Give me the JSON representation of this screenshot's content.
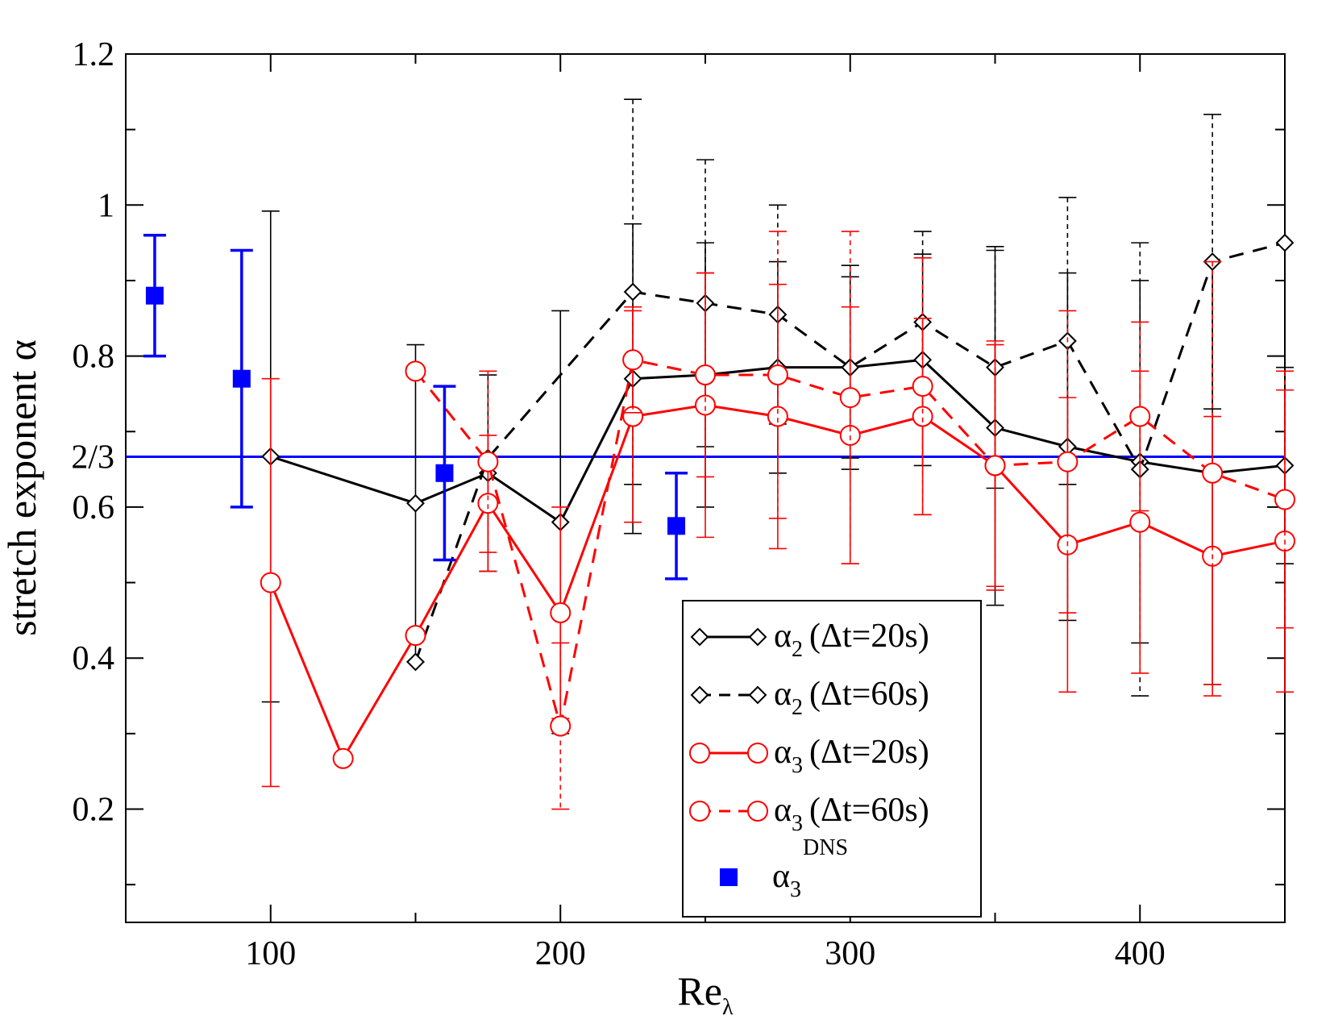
{
  "chart_data": {
    "type": "line",
    "title": "",
    "xlabel": "Re",
    "xlabel_sub": "λ",
    "ylabel": "stretch exponent α",
    "xlim": [
      50,
      450
    ],
    "ylim": [
      0.05,
      1.2
    ],
    "x_ticks": [
      100,
      200,
      300,
      400
    ],
    "x_tick_labels": [
      "100",
      "200",
      "300",
      "400"
    ],
    "y_ticks": [
      0.2,
      0.4,
      0.6,
      0.8,
      1.0,
      1.2
    ],
    "y_tick_labels": [
      "0.2",
      "0.4",
      "0.6",
      "0.8",
      "1",
      "1.2"
    ],
    "reference_line": {
      "value": 0.6667,
      "label": "2/3",
      "color": "#0000ff"
    },
    "legend_position": "bottom-center",
    "series": [
      {
        "name": "α2 (Δt=20s)",
        "symbol": "α",
        "subscript": "2",
        "detail": "(Δt=20s)",
        "color": "#000000",
        "dash": "solid",
        "marker": "diamond",
        "x": [
          100,
          150,
          175,
          200,
          225,
          250,
          275,
          300,
          325,
          350,
          375,
          400,
          425,
          450
        ],
        "y": [
          0.667,
          0.605,
          0.645,
          0.58,
          0.77,
          0.775,
          0.785,
          0.785,
          0.795,
          0.705,
          0.68,
          0.66,
          0.645,
          0.655
        ],
        "err": [
          0.325,
          0.21,
          0.13,
          0.28,
          0.205,
          0.175,
          0.14,
          0.135,
          0.14,
          0.235,
          0.23,
          0.24,
          0.28,
          0.13
        ]
      },
      {
        "name": "α2 (Δt=60s)",
        "symbol": "α",
        "subscript": "2",
        "detail": "(Δt=60s)",
        "color": "#000000",
        "dash": "dashed",
        "marker": "diamond",
        "x": [
          150,
          175,
          225,
          250,
          275,
          300,
          325,
          350,
          375,
          400,
          425,
          450
        ],
        "y": [
          0.395,
          0.665,
          0.885,
          0.87,
          0.855,
          0.785,
          0.845,
          0.785,
          0.82,
          0.65,
          0.925,
          0.95
        ],
        "err": [
          0.0,
          0.0,
          0.255,
          0.19,
          0.145,
          0.12,
          0.12,
          0.16,
          0.19,
          0.3,
          0.195,
          0.0
        ]
      },
      {
        "name": "α3 (Δt=20s)",
        "symbol": "α",
        "subscript": "3",
        "detail": "(Δt=20s)",
        "color": "#ff0000",
        "dash": "solid",
        "marker": "circle",
        "x": [
          100,
          125,
          150,
          175,
          200,
          225,
          250,
          275,
          300,
          325,
          350,
          375,
          400,
          425,
          450
        ],
        "y": [
          0.5,
          0.267,
          0.43,
          0.605,
          0.46,
          0.72,
          0.735,
          0.72,
          0.695,
          0.72,
          0.655,
          0.55,
          0.58,
          0.535,
          0.555
        ],
        "err": [
          0.27,
          0.0,
          0.0,
          0.09,
          0.14,
          0.14,
          0.175,
          0.175,
          0.17,
          0.13,
          0.16,
          0.195,
          0.2,
          0.185,
          0.2
        ]
      },
      {
        "name": "α3 (Δt=60s)",
        "symbol": "α",
        "subscript": "3",
        "detail": "(Δt=60s)",
        "color": "#ff0000",
        "dash": "dashed",
        "marker": "circle",
        "x": [
          150,
          175,
          200,
          225,
          250,
          275,
          300,
          325,
          350,
          375,
          400,
          425,
          450
        ],
        "y": [
          0.78,
          0.66,
          0.31,
          0.795,
          0.775,
          0.775,
          0.745,
          0.76,
          0.655,
          0.66,
          0.72,
          0.645,
          0.61
        ],
        "err": [
          0.0,
          0.12,
          0.11,
          0.07,
          0.135,
          0.19,
          0.22,
          0.17,
          0.165,
          0.2,
          0.125,
          0.28,
          0.17
        ]
      }
    ],
    "dns_series": {
      "name": "α3 DNS",
      "symbol": "α",
      "subscript": "3",
      "superscript": "DNS",
      "color": "#0000ff",
      "marker": "square",
      "x": [
        60,
        90,
        160,
        240
      ],
      "y": [
        0.88,
        0.77,
        0.645,
        0.575
      ],
      "err": [
        0.08,
        0.17,
        0.115,
        0.07
      ]
    }
  }
}
